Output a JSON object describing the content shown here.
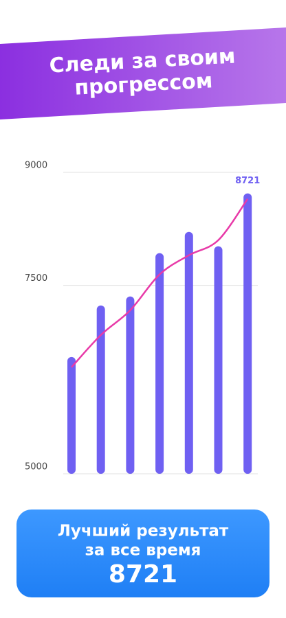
{
  "header": {
    "title_lines": [
      "Следи за своим",
      "прогрессом"
    ]
  },
  "chart_data": {
    "type": "bar",
    "series": [
      {
        "color": "#6f60f2",
        "values": [
          6550,
          7234,
          7353,
          7928,
          8210,
          8019,
          8721
        ],
        "data_labels": [
          false,
          false,
          false,
          false,
          false,
          false,
          true
        ]
      }
    ],
    "trend": {
      "color": "#e83aa8",
      "values": [
        6414,
        6842,
        7170,
        7645,
        7900,
        8100,
        8648
      ]
    },
    "ylim": [
      5000,
      9000
    ],
    "yticks": [
      5000,
      7500,
      9000
    ],
    "grid": true
  },
  "card": {
    "label_lines": [
      "Лучший результат",
      "за все время"
    ],
    "value": 8721
  }
}
